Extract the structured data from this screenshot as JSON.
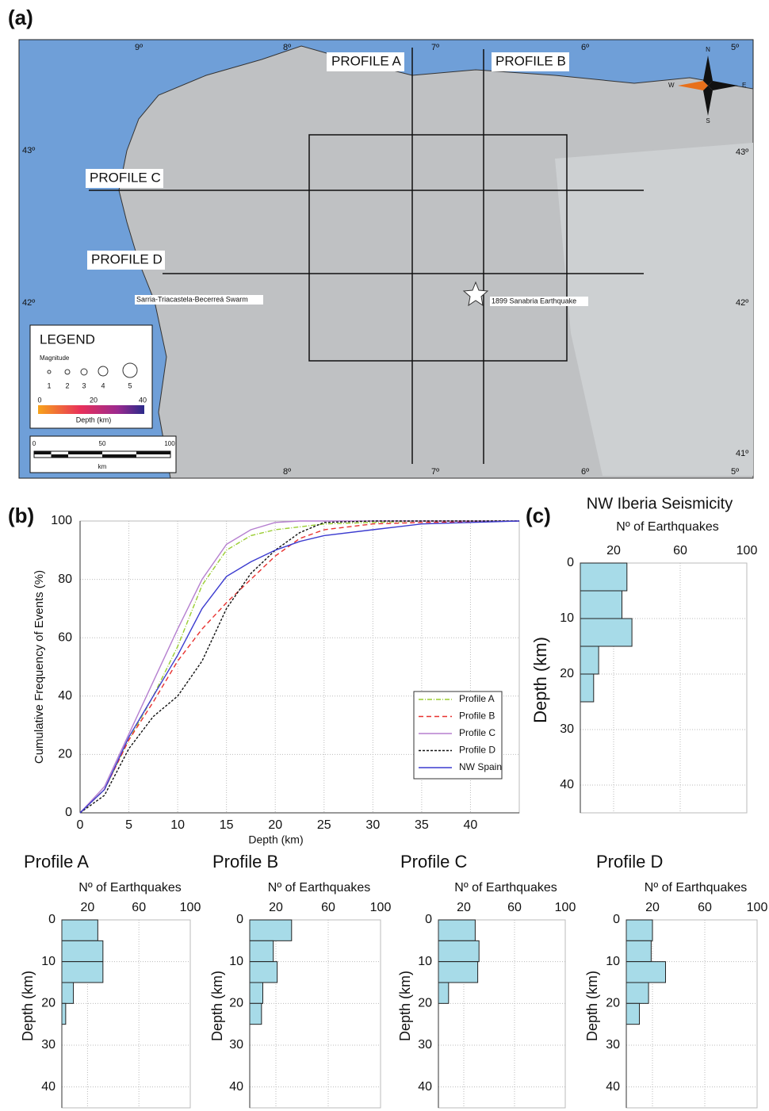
{
  "map": {
    "panel": "(a)",
    "profiles": [
      "PROFILE A",
      "PROFILE B",
      "PROFILE C",
      "PROFILE D"
    ],
    "annotations": [
      "Sarria-Triacastela-Becerreá Swarm",
      "1899 Sanabria Earthquake"
    ],
    "longitudes": [
      "9º",
      "8º",
      "7º",
      "6º",
      "5º"
    ],
    "latitudes": [
      "43º",
      "42º",
      "41º"
    ],
    "legend": {
      "title": "LEGEND",
      "magnitude_label": "Magnitude",
      "magnitudes": [
        "1",
        "2",
        "3",
        "4",
        "5"
      ],
      "depth_ticks": [
        "0",
        "20",
        "40"
      ],
      "depth_label": "Depth (km)"
    },
    "scale": {
      "ticks": [
        "0",
        "50",
        "100"
      ],
      "unit": "km"
    },
    "compass": [
      "N",
      "E",
      "S",
      "W"
    ]
  },
  "chart_data": [
    {
      "type": "line",
      "panel": "(b)",
      "xlabel": "Depth (km)",
      "ylabel": "Cumulative Frequency of Events (%)",
      "x": [
        0,
        2.5,
        5,
        7.5,
        10,
        12.5,
        15,
        17.5,
        20,
        22.5,
        25,
        30,
        35,
        45
      ],
      "series": [
        {
          "name": "Profile A",
          "color": "#9acd32",
          "dash": "6 2 1 2",
          "values": [
            0,
            8,
            25,
            40,
            57,
            78,
            90,
            95,
            97,
            98,
            99,
            99.5,
            100,
            100
          ]
        },
        {
          "name": "Profile B",
          "color": "#e8312f",
          "dash": "6 4",
          "values": [
            0,
            8,
            25,
            38,
            52,
            63,
            72,
            80,
            88,
            94,
            97,
            99,
            99.5,
            100
          ]
        },
        {
          "name": "Profile C",
          "color": "#b57fcf",
          "dash": "none",
          "values": [
            0,
            9,
            27,
            45,
            63,
            80,
            92,
            97,
            99.5,
            100,
            100,
            100,
            100,
            100
          ]
        },
        {
          "name": "Profile D",
          "color": "#111111",
          "dash": "3 2",
          "values": [
            0,
            6,
            22,
            33,
            40,
            52,
            70,
            82,
            90,
            96,
            99.5,
            100,
            100,
            100
          ]
        },
        {
          "name": "NW Spain",
          "color": "#3b3bcf",
          "dash": "none",
          "values": [
            0,
            8,
            26,
            40,
            54,
            70,
            81,
            86,
            90,
            93,
            95,
            97,
            99,
            100
          ]
        }
      ],
      "xlim": [
        0,
        45
      ],
      "xticks": [
        0,
        5,
        10,
        15,
        20,
        25,
        30,
        35,
        40
      ],
      "ylim": [
        0,
        100
      ],
      "yticks": [
        0,
        20,
        40,
        60,
        80,
        100
      ],
      "grid": true
    },
    {
      "type": "histogram",
      "panel": "(c)",
      "title": "NW Iberia Seismicity",
      "xlabel": "Nº of Earthquakes",
      "ylabel": "Depth (km)",
      "bins": [
        0,
        5,
        10,
        15,
        20,
        25,
        30,
        35,
        40
      ],
      "values": [
        28,
        25,
        31,
        11,
        8,
        0,
        0,
        0
      ],
      "color": "#a7dbe8",
      "xlim": [
        0,
        100
      ],
      "xticks": [
        20,
        60,
        100
      ],
      "ylim": [
        0,
        45
      ],
      "yticks": [
        0,
        10,
        20,
        30,
        40
      ],
      "y_inverted": true,
      "grid": true
    },
    {
      "type": "histogram",
      "title": "Profile A",
      "xlabel": "Nº of Earthquakes",
      "ylabel": "Depth (km)",
      "bins": [
        0,
        5,
        10,
        15,
        20,
        25,
        30,
        35,
        40
      ],
      "values": [
        28,
        32,
        32,
        9,
        3,
        0,
        0,
        0
      ],
      "color": "#a7dbe8",
      "xlim": [
        0,
        100
      ],
      "xticks": [
        20,
        60,
        100
      ],
      "ylim": [
        0,
        45
      ],
      "yticks": [
        0,
        10,
        20,
        30,
        40
      ],
      "y_inverted": true,
      "grid": true
    },
    {
      "type": "histogram",
      "title": "Profile B",
      "xlabel": "Nº of Earthquakes",
      "ylabel": "Depth (km)",
      "bins": [
        0,
        5,
        10,
        15,
        20,
        25,
        30,
        35,
        40
      ],
      "values": [
        32,
        18,
        21,
        10,
        9,
        0,
        0,
        0
      ],
      "color": "#a7dbe8",
      "xlim": [
        0,
        100
      ],
      "xticks": [
        20,
        60,
        100
      ],
      "ylim": [
        0,
        45
      ],
      "yticks": [
        0,
        10,
        20,
        30,
        40
      ],
      "y_inverted": true,
      "grid": true
    },
    {
      "type": "histogram",
      "title": "Profile C",
      "xlabel": "Nº of Earthquakes",
      "ylabel": "Depth (km)",
      "bins": [
        0,
        5,
        10,
        15,
        20,
        25,
        30,
        35,
        40
      ],
      "values": [
        29,
        32,
        31,
        8,
        0,
        0,
        0,
        0
      ],
      "color": "#a7dbe8",
      "xlim": [
        0,
        100
      ],
      "xticks": [
        20,
        60,
        100
      ],
      "ylim": [
        0,
        45
      ],
      "yticks": [
        0,
        10,
        20,
        30,
        40
      ],
      "y_inverted": true,
      "grid": true
    },
    {
      "type": "histogram",
      "title": "Profile D",
      "xlabel": "Nº of Earthquakes",
      "ylabel": "Depth (km)",
      "bins": [
        0,
        5,
        10,
        15,
        20,
        25,
        30,
        35,
        40
      ],
      "values": [
        20,
        19,
        30,
        17,
        10,
        0,
        0,
        0
      ],
      "color": "#a7dbe8",
      "xlim": [
        0,
        100
      ],
      "xticks": [
        20,
        60,
        100
      ],
      "ylim": [
        0,
        45
      ],
      "yticks": [
        0,
        10,
        20,
        30,
        40
      ],
      "y_inverted": true,
      "grid": true
    }
  ]
}
